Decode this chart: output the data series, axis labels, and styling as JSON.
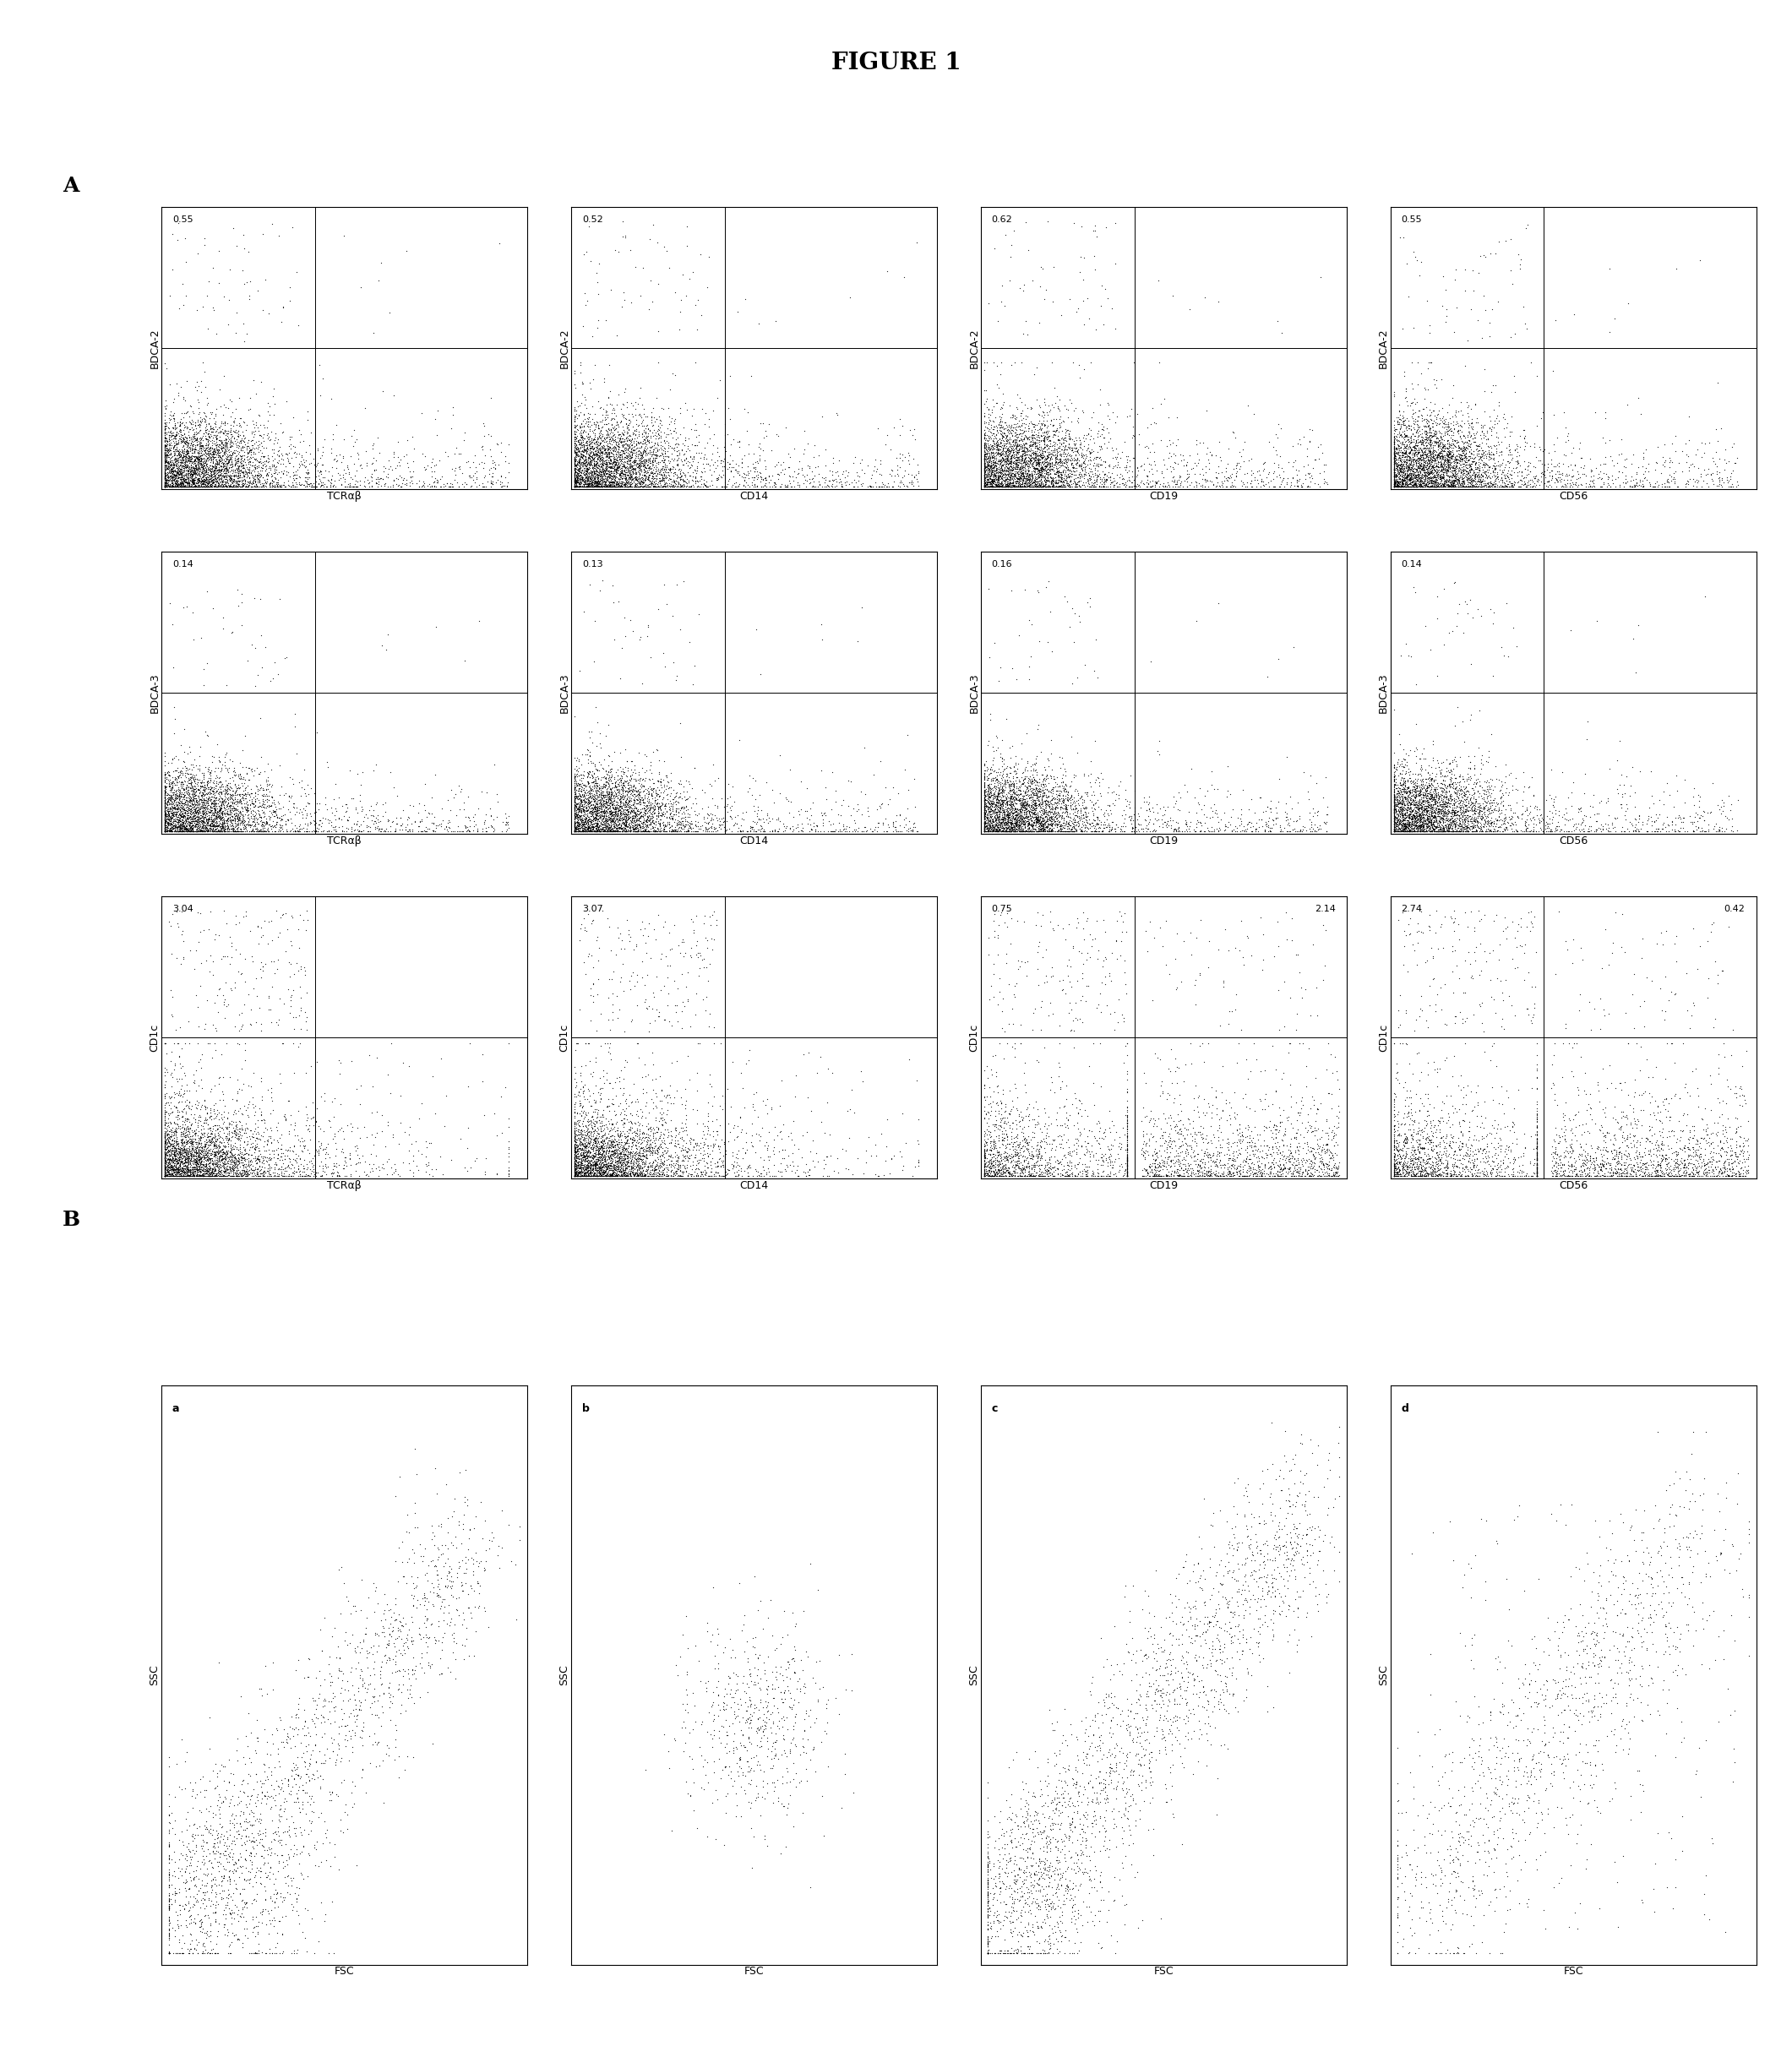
{
  "title": "FIGURE 1",
  "section_A_label": "A",
  "section_B_label": "B",
  "row1_ylabel": [
    "BDCA-2",
    "BDCA-2",
    "BDCA-2",
    "BDCA-2"
  ],
  "row2_ylabel": [
    "BDCA-3",
    "BDCA-3",
    "BDCA-3",
    "BDCA-3"
  ],
  "row3_ylabel": [
    "CD1c",
    "CD1c",
    "CD1c",
    "CD1c"
  ],
  "col_xlabels": [
    "TCRαβ",
    "CD14",
    "CD19",
    "CD56"
  ],
  "row1_values": [
    [
      "0.55",
      ""
    ],
    [
      "0.52",
      ""
    ],
    [
      "0.62",
      ""
    ],
    [
      "0.55",
      ""
    ]
  ],
  "row2_values": [
    [
      "0.14",
      ""
    ],
    [
      "0.13",
      ""
    ],
    [
      "0.16",
      ""
    ],
    [
      "0.14",
      ""
    ]
  ],
  "row3_values": [
    [
      "3.04",
      ""
    ],
    [
      "3.07",
      ""
    ],
    [
      "0.75",
      "2.14"
    ],
    [
      "2.74",
      "0.42"
    ]
  ],
  "bottom_labels": [
    "a",
    "b",
    "c",
    "d"
  ],
  "bottom_xlabel": "FSC",
  "bottom_ylabel": "SSC",
  "bg_color": "#ffffff",
  "dot_color": "#000000",
  "line_color": "#000000",
  "title_fontsize": 20,
  "label_fontsize": 9,
  "value_fontsize": 8,
  "section_label_fontsize": 18,
  "quadrant_xline": 0.42,
  "quadrant_yline": 0.5
}
